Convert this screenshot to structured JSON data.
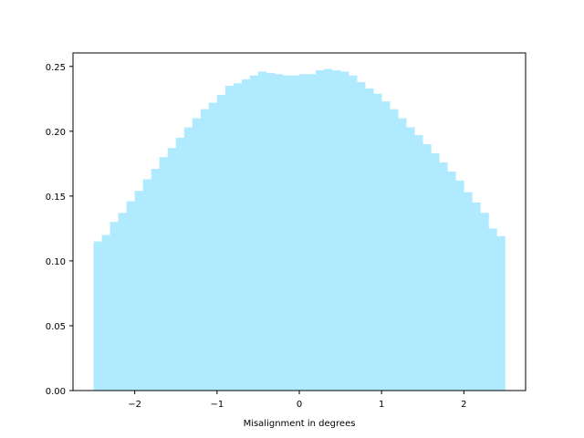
{
  "chart_data": {
    "type": "histogram",
    "title": "",
    "xlabel": "Misalignment in degrees",
    "ylabel": "",
    "bin_start": -2.5,
    "bin_width": 0.1,
    "bins": 50,
    "values": [
      0.115,
      0.12,
      0.13,
      0.137,
      0.146,
      0.154,
      0.163,
      0.171,
      0.18,
      0.187,
      0.195,
      0.203,
      0.21,
      0.217,
      0.222,
      0.228,
      0.235,
      0.237,
      0.24,
      0.243,
      0.246,
      0.245,
      0.244,
      0.243,
      0.243,
      0.244,
      0.244,
      0.247,
      0.248,
      0.247,
      0.246,
      0.243,
      0.238,
      0.233,
      0.229,
      0.223,
      0.217,
      0.21,
      0.203,
      0.197,
      0.19,
      0.183,
      0.176,
      0.169,
      0.162,
      0.153,
      0.145,
      0.137,
      0.125,
      0.119
    ],
    "xlim": [
      -2.75,
      2.75
    ],
    "ylim": [
      0,
      0.2604
    ],
    "xticks": [
      -2,
      -1,
      0,
      1,
      2
    ],
    "xtick_labels": [
      "−2",
      "−1",
      "0",
      "1",
      "2"
    ],
    "yticks": [
      0.0,
      0.05,
      0.1,
      0.15,
      0.2,
      0.25
    ],
    "ytick_labels": [
      "0.00",
      "0.05",
      "0.10",
      "0.15",
      "0.20",
      "0.25"
    ],
    "bar_color": "#b0eaff",
    "grid": false,
    "legend": false
  }
}
